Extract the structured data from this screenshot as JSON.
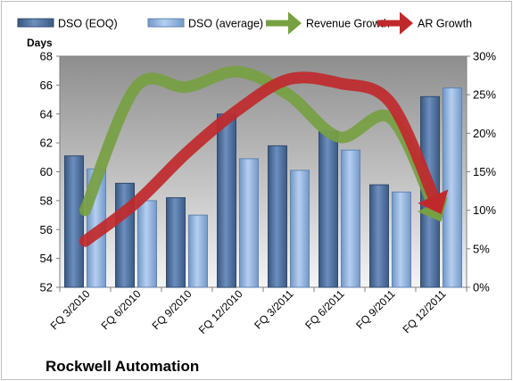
{
  "chart_data": {
    "type": "bar",
    "title": "Rockwell Automation",
    "ylabel": "Days",
    "ylim": [
      52,
      68
    ],
    "yticks": [
      52,
      54,
      56,
      58,
      60,
      62,
      64,
      66,
      68
    ],
    "y2lim": [
      0,
      30
    ],
    "y2ticks": [
      "0%",
      "5%",
      "10%",
      "15%",
      "20%",
      "25%",
      "30%"
    ],
    "categories": [
      "FQ 3/2010",
      "FQ 6/2010",
      "FQ 9/2010",
      "FQ 12/2010",
      "FQ 3/2011",
      "FQ 6/2011",
      "FQ 9/2011",
      "FQ 12/2011"
    ],
    "series": [
      {
        "name": "DSO (EOQ)",
        "kind": "bar",
        "axis": "left",
        "color": "#4a6b9a",
        "values": [
          61.1,
          59.2,
          58.2,
          64.0,
          61.8,
          62.8,
          59.1,
          65.2
        ]
      },
      {
        "name": "DSO (average)",
        "kind": "bar",
        "axis": "left",
        "color": "#8db0d9",
        "values": [
          60.2,
          58.0,
          57.0,
          60.9,
          60.1,
          61.5,
          58.6,
          65.8
        ]
      },
      {
        "name": "Revenue Growth",
        "kind": "arrow-line",
        "axis": "right",
        "unit": "%",
        "color": "#77a042",
        "values": [
          10,
          26,
          26,
          28,
          25,
          19.5,
          22,
          8.5
        ]
      },
      {
        "name": "AR Growth",
        "kind": "arrow-line",
        "axis": "right",
        "unit": "%",
        "color": "#c0292b",
        "values": [
          6,
          11,
          17.5,
          23,
          27,
          26.5,
          24,
          9.5
        ]
      }
    ],
    "legend_position": "top",
    "grid": false
  }
}
